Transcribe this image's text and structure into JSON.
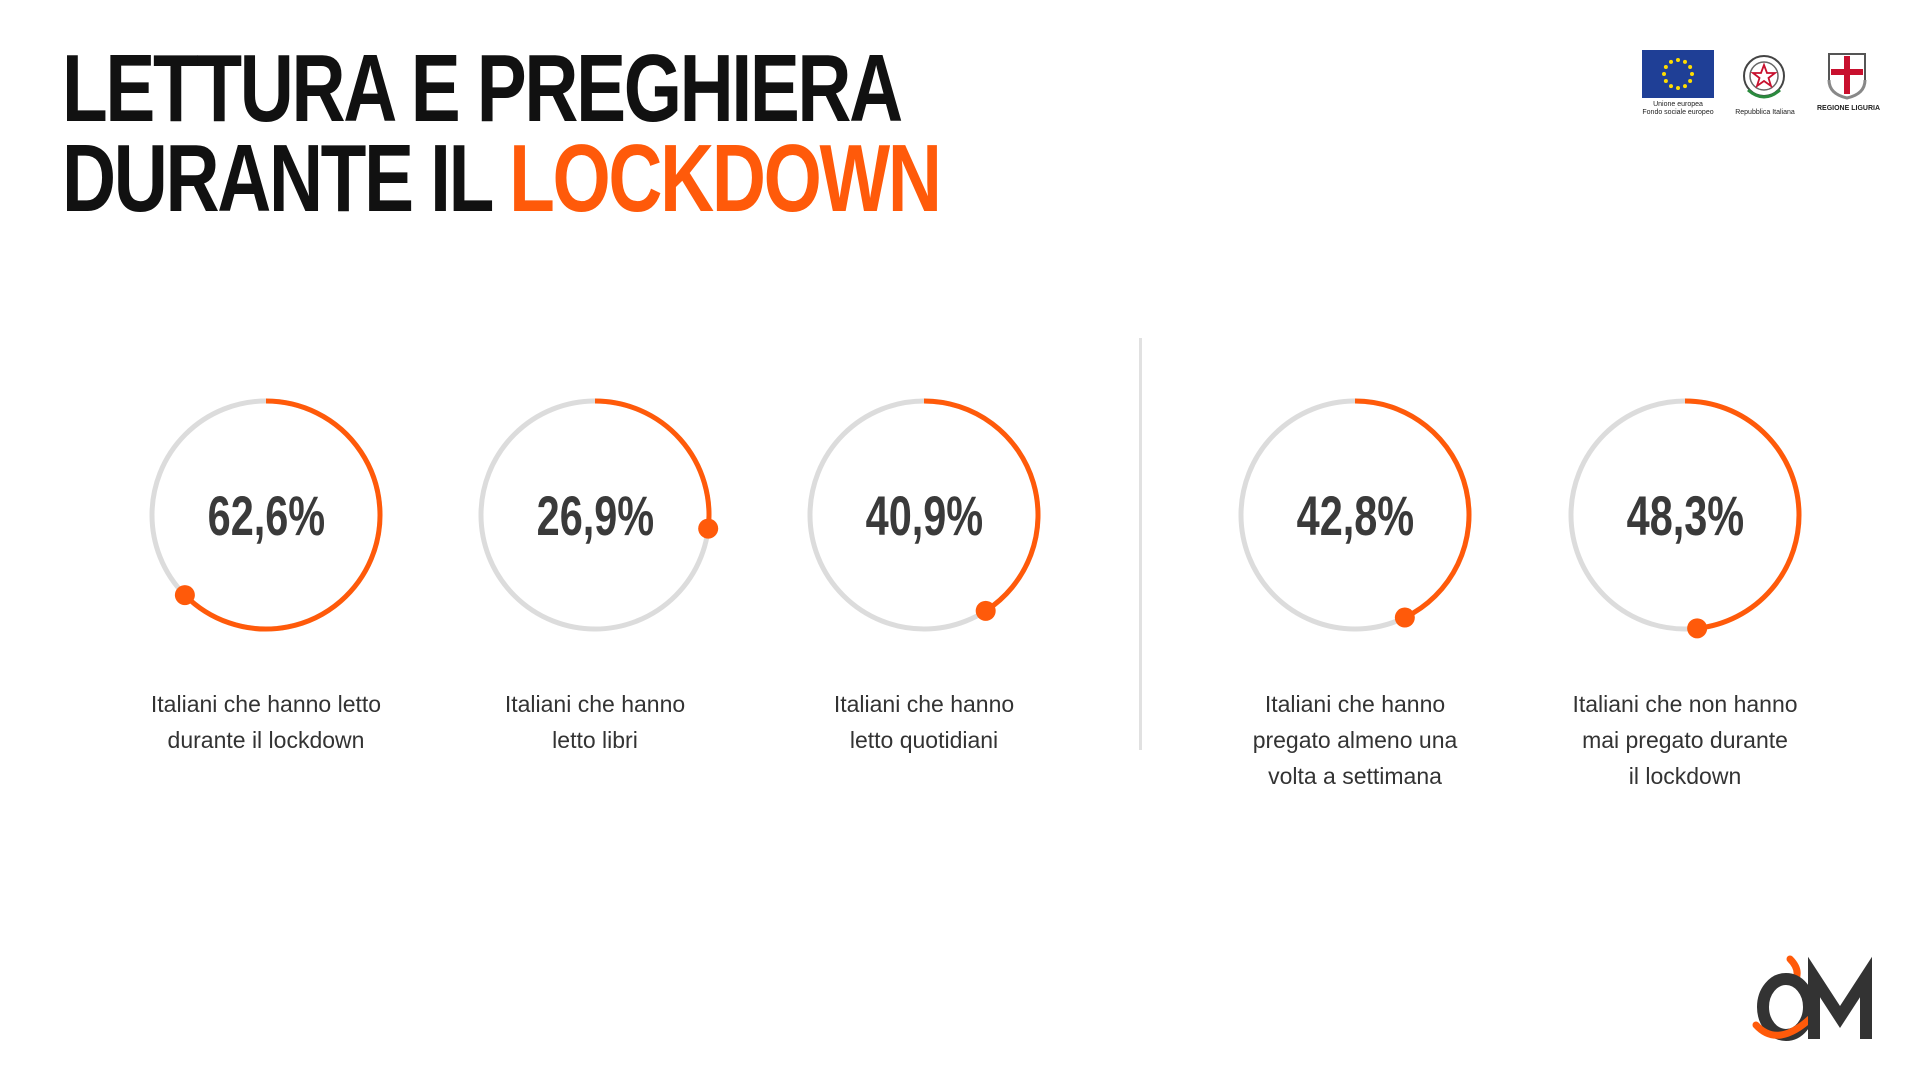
{
  "header": {
    "title_line1": "LETTURA E PREGHIERA",
    "title_line2_plain": "DURANTE IL ",
    "title_line2_accent": "LOCKDOWN"
  },
  "logos": {
    "eu_line1": "Unione europea",
    "eu_line2": "Fondo sociale europeo",
    "italy": "Repubblica Italiana",
    "liguria": "REGIONE LIGURIA",
    "brand": "OM"
  },
  "colors": {
    "accent": "#ff5a0a",
    "track": "#dcdcdc",
    "text": "#333333",
    "title": "#111111"
  },
  "chart_data": {
    "type": "pie",
    "variant": "ring-progress",
    "items": [
      {
        "value_label": "62,6%",
        "value": 62.6,
        "label_lines": [
          "Italiani che hanno letto",
          "durante il lockdown"
        ]
      },
      {
        "value_label": "26,9%",
        "value": 26.9,
        "label_lines": [
          "Italiani che hanno",
          "letto libri"
        ]
      },
      {
        "value_label": "40,9%",
        "value": 40.9,
        "label_lines": [
          "Italiani che hanno",
          "letto quotidiani"
        ]
      },
      {
        "value_label": "42,8%",
        "value": 42.8,
        "label_lines": [
          "Italiani che hanno",
          "pregato almeno una",
          "volta a settimana"
        ]
      },
      {
        "value_label": "48,3%",
        "value": 48.3,
        "label_lines": [
          "Italiani che non hanno",
          "mai pregato durante",
          "il lockdown"
        ]
      }
    ]
  }
}
